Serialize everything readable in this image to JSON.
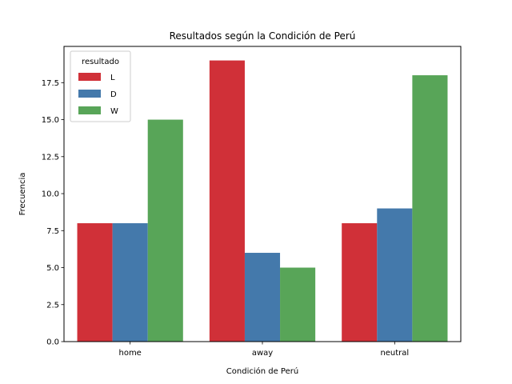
{
  "chart_data": {
    "type": "bar",
    "title": "Resultados según la Condición de Perú",
    "xlabel": "Condición de Perú",
    "ylabel": "Frecuencia",
    "categories": [
      "home",
      "away",
      "neutral"
    ],
    "series": [
      {
        "name": "L",
        "values": [
          8,
          19,
          8
        ],
        "color": "#d03038"
      },
      {
        "name": "D",
        "values": [
          8,
          6,
          9
        ],
        "color": "#4479ab"
      },
      {
        "name": "W",
        "values": [
          15,
          5,
          18
        ],
        "color": "#58a558"
      }
    ],
    "ylim": [
      0,
      19.95
    ],
    "yticks": [
      0,
      2.5,
      5,
      7.5,
      10,
      12.5,
      15,
      17.5
    ],
    "ytick_labels": [
      "0.0",
      "2.5",
      "5.0",
      "7.5",
      "10.0",
      "12.5",
      "15.0",
      "17.5"
    ],
    "legend": {
      "title": "resultado",
      "placement": "top-left"
    },
    "grid": false
  }
}
